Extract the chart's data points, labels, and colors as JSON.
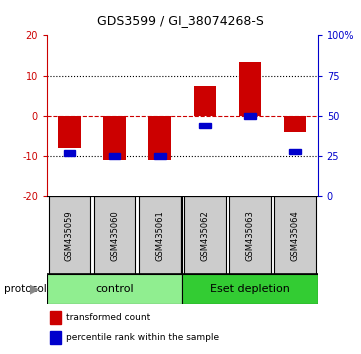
{
  "title": "GDS3599 / GI_38074268-S",
  "samples": [
    "GSM435059",
    "GSM435060",
    "GSM435061",
    "GSM435062",
    "GSM435063",
    "GSM435064"
  ],
  "transformed_counts": [
    -8.0,
    -11.0,
    -11.0,
    7.5,
    13.5,
    -4.0
  ],
  "percentile_ranks": [
    27,
    25,
    25,
    44,
    50,
    28
  ],
  "ylim_left": [
    -20,
    20
  ],
  "ylim_right": [
    0,
    100
  ],
  "yticks_left": [
    -20,
    -10,
    0,
    10,
    20
  ],
  "yticks_right": [
    0,
    25,
    50,
    75,
    100
  ],
  "ytick_labels_left": [
    "-20",
    "-10",
    "0",
    "10",
    "20"
  ],
  "ytick_labels_right": [
    "0",
    "25",
    "50",
    "75",
    "100%"
  ],
  "groups": [
    {
      "label": "control",
      "color": "#90EE90"
    },
    {
      "label": "Eset depletion",
      "color": "#33CC33"
    }
  ],
  "bar_color_red": "#CC0000",
  "bar_color_blue": "#0000CC",
  "protocol_label": "protocol",
  "legend_red": "transformed count",
  "legend_blue": "percentile rank within the sample",
  "bar_width": 0.25,
  "sample_box_color": "#CCCCCC",
  "zero_line_color": "#CC0000"
}
